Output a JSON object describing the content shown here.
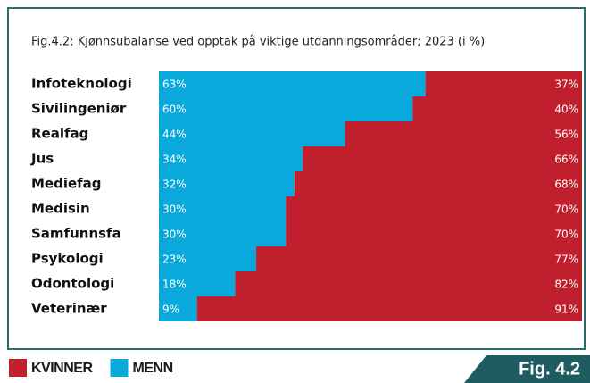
{
  "chart_data": {
    "type": "bar",
    "orientation": "horizontal",
    "stacked": true,
    "title": "Fig.4.2: Kjønnsubalanse ved opptak på viktige utdanningsområder; 2023 (i %)",
    "figure_label": "Fig. 4.2",
    "categories": [
      "Infoteknologi",
      "Sivilingeniør",
      "Realfag",
      "Jus",
      "Mediefag",
      "Medisin",
      "Samfunnsfa",
      "Psykologi",
      "Odontologi",
      "Veterinær"
    ],
    "series": [
      {
        "name": "KVINNER",
        "color": "#c0202e",
        "values": [
          37,
          40,
          56,
          66,
          68,
          70,
          70,
          77,
          82,
          91
        ],
        "value_labels": [
          "37%",
          "40%",
          "56%",
          "66%",
          "68%",
          "70%",
          "70%",
          "77%",
          "82%",
          "91%"
        ]
      },
      {
        "name": "MENN",
        "color": "#0aa9dc",
        "values": [
          63,
          60,
          44,
          34,
          32,
          30,
          30,
          23,
          18,
          9
        ],
        "value_labels": [
          "63%",
          "60%",
          "44%",
          "34%",
          "32%",
          "30%",
          "30%",
          "23%",
          "18%",
          "9%"
        ]
      }
    ]
  }
}
